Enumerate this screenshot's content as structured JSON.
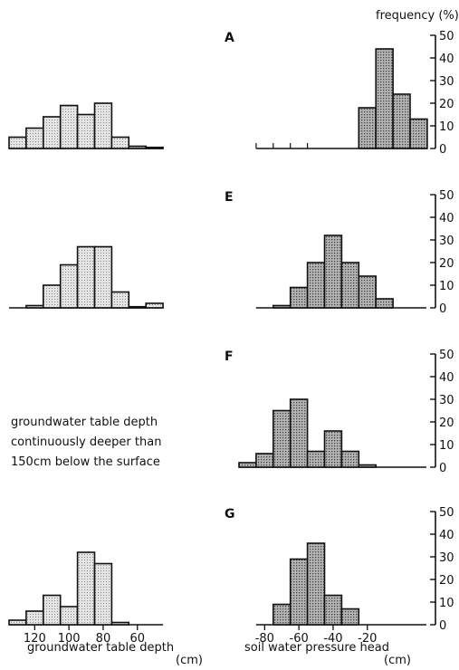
{
  "chart_data": {
    "type": "bar",
    "frequency_label": "frequency (%)",
    "y_ticks": [
      "0",
      "10",
      "20",
      "30",
      "40",
      "50"
    ],
    "ylim": [
      0,
      50
    ],
    "groundwater": {
      "axis_title": "groundwater table depth",
      "unit": "(cm)",
      "tick_labels": [
        "120",
        "100",
        "80",
        "60"
      ],
      "tick_values": [
        120,
        100,
        80,
        60
      ],
      "bin_edges": [
        135,
        125,
        115,
        105,
        95,
        85,
        75,
        65,
        55,
        45
      ]
    },
    "pressure": {
      "axis_title": "soil water pressure head",
      "unit": "(cm)",
      "tick_labels": [
        "-80",
        "-60",
        "-40",
        "-20"
      ],
      "tick_values": [
        -80,
        -60,
        -40,
        -20
      ],
      "bin_edges": [
        -85,
        -75,
        -65,
        -55,
        -45,
        -35,
        -25,
        -15,
        -5
      ]
    },
    "panels": [
      {
        "label": "A",
        "groundwater": [
          5,
          9,
          14,
          19,
          15,
          20,
          5,
          1,
          0.5
        ],
        "pressure": [
          0,
          0,
          0,
          18,
          44,
          24,
          13
        ],
        "pressure_x0": -55
      },
      {
        "label": "E",
        "groundwater": [
          0,
          1,
          10,
          19,
          27,
          27,
          7,
          0.5,
          2
        ],
        "pressure": [
          0,
          1,
          9,
          20,
          32,
          20,
          14,
          4
        ],
        "pressure_x0": -85
      },
      {
        "label": "F",
        "note": [
          "groundwater table depth",
          "continuously deeper than",
          "150cm below the surface"
        ],
        "groundwater": [],
        "pressure": [
          2,
          6,
          25,
          30,
          7,
          16,
          7,
          1
        ],
        "pressure_x0": -95
      },
      {
        "label": "G",
        "groundwater": [
          2,
          6,
          13,
          8,
          32,
          27,
          1,
          0
        ],
        "pressure": [
          0,
          9,
          29,
          36,
          13,
          7,
          0
        ],
        "pressure_x0": -85
      }
    ]
  }
}
